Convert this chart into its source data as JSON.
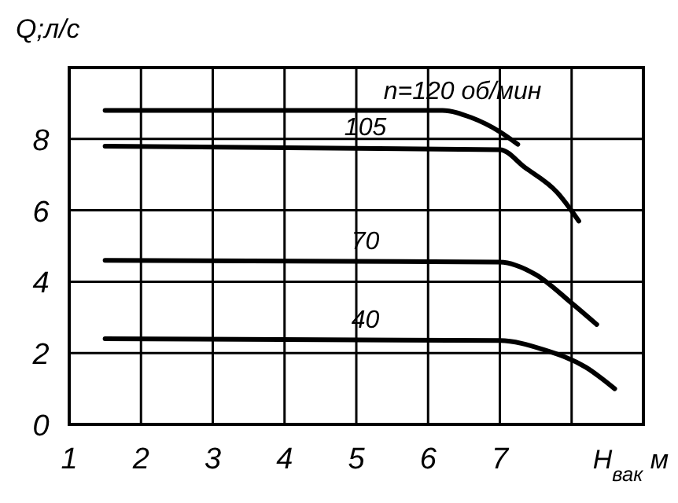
{
  "chart_data": {
    "type": "line",
    "xlabel": "H$_{вак}$ м",
    "ylabel": "Q;л/с",
    "xlim": [
      1,
      9
    ],
    "ylim": [
      0,
      10
    ],
    "xticks": [
      1,
      2,
      3,
      4,
      5,
      6,
      7,
      {
        "value": 8,
        "label": null
      }
    ],
    "yticks": [
      0,
      2,
      4,
      6,
      8
    ],
    "grid": true,
    "marker": "none",
    "line_style": "solid",
    "series": [
      {
        "name": "n=120 об/мин",
        "color": "#000000",
        "x": [
          1.5,
          6.2,
          6.6,
          7.0,
          7.25
        ],
        "values": [
          8.8,
          8.8,
          8.6,
          8.2,
          7.85
        ]
      },
      {
        "name": "105",
        "color": "#000000",
        "x": [
          1.5,
          7.0,
          7.35,
          7.8,
          8.1
        ],
        "values": [
          7.8,
          7.7,
          7.2,
          6.5,
          5.7
        ]
      },
      {
        "name": "70",
        "color": "#000000",
        "x": [
          1.5,
          7.0,
          7.5,
          8.0,
          8.35
        ],
        "values": [
          4.6,
          4.55,
          4.2,
          3.4,
          2.8
        ]
      },
      {
        "name": "40",
        "color": "#000000",
        "x": [
          1.5,
          7.0,
          7.6,
          8.2,
          8.6
        ],
        "values": [
          2.4,
          2.35,
          2.1,
          1.6,
          1.0
        ]
      }
    ]
  }
}
